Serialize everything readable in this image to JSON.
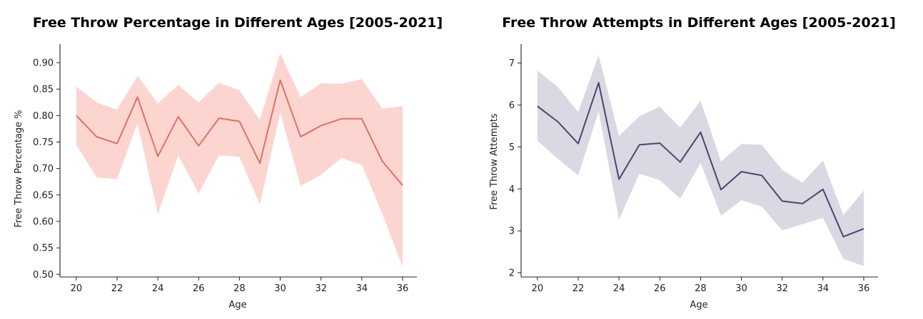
{
  "chart_data": [
    {
      "type": "line",
      "title": "Free Throw Percentage in Different Ages [2005-2021]",
      "xlabel": "Age",
      "ylabel": "Free Throw Percentage %",
      "xlim": [
        19.2,
        36.7
      ],
      "ylim": [
        0.495,
        0.935
      ],
      "xticks": [
        20,
        22,
        24,
        26,
        28,
        30,
        32,
        34,
        36
      ],
      "yticks": [
        0.5,
        0.55,
        0.6,
        0.65,
        0.7,
        0.75,
        0.8,
        0.85,
        0.9
      ],
      "ytick_labels": [
        "0.50",
        "0.55",
        "0.60",
        "0.65",
        "0.70",
        "0.75",
        "0.80",
        "0.85",
        "0.90"
      ],
      "line_color": "#e07063",
      "band_color": "#fcd5d1",
      "grid": false,
      "legend": false,
      "series": [
        {
          "name": "Free Throw Percentage",
          "x": [
            20,
            21,
            22,
            23,
            24,
            25,
            26,
            27,
            28,
            29,
            30,
            31,
            32,
            33,
            34,
            35,
            36
          ],
          "values": [
            0.8,
            0.76,
            0.747,
            0.835,
            0.723,
            0.798,
            0.743,
            0.795,
            0.789,
            0.71,
            0.867,
            0.76,
            0.781,
            0.794,
            0.794,
            0.714,
            0.668
          ],
          "ci_lower": [
            0.745,
            0.683,
            0.68,
            0.785,
            0.614,
            0.725,
            0.653,
            0.725,
            0.722,
            0.632,
            0.805,
            0.667,
            0.688,
            0.72,
            0.707,
            0.615,
            0.514
          ],
          "ci_upper": [
            0.855,
            0.825,
            0.811,
            0.875,
            0.823,
            0.858,
            0.825,
            0.862,
            0.848,
            0.792,
            0.918,
            0.835,
            0.861,
            0.86,
            0.869,
            0.813,
            0.818
          ]
        }
      ]
    },
    {
      "type": "line",
      "title": "Free Throw Attempts in Different Ages [2005-2021]",
      "xlabel": "Age",
      "ylabel": "Free Throw Attempts",
      "xlim": [
        19.2,
        36.7
      ],
      "ylim": [
        1.9,
        7.45
      ],
      "xticks": [
        20,
        22,
        24,
        26,
        28,
        30,
        32,
        34,
        36
      ],
      "yticks": [
        2,
        3,
        4,
        5,
        6,
        7
      ],
      "ytick_labels": [
        "2",
        "3",
        "4",
        "5",
        "6",
        "7"
      ],
      "line_color": "#4a4570",
      "band_color": "#d9d8e3",
      "grid": false,
      "legend": false,
      "series": [
        {
          "name": "Free Throw Attempts",
          "x": [
            20,
            21,
            22,
            23,
            24,
            25,
            26,
            27,
            28,
            29,
            30,
            31,
            32,
            33,
            34,
            35,
            36
          ],
          "values": [
            5.97,
            5.6,
            5.08,
            6.53,
            4.23,
            5.05,
            5.09,
            4.64,
            5.35,
            3.98,
            4.41,
            4.32,
            3.71,
            3.65,
            3.99,
            2.86,
            3.05
          ],
          "ci_lower": [
            5.15,
            4.72,
            4.32,
            5.85,
            3.27,
            4.36,
            4.21,
            3.77,
            4.62,
            3.36,
            3.73,
            3.58,
            3.01,
            3.16,
            3.31,
            2.33,
            2.16
          ],
          "ci_upper": [
            6.82,
            6.43,
            5.83,
            7.19,
            5.26,
            5.73,
            5.96,
            5.46,
            6.1,
            4.65,
            5.07,
            5.05,
            4.45,
            4.15,
            4.68,
            3.37,
            3.96
          ]
        }
      ]
    }
  ]
}
